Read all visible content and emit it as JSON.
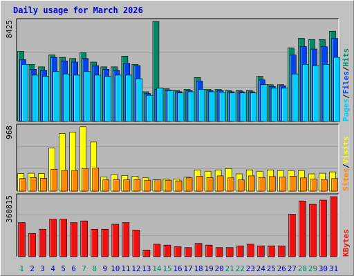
{
  "colors": {
    "background": "#c0c0c0",
    "plot_bg": "#b8b8b8",
    "title": "#0000cc",
    "hits": "#008866",
    "files": "#0044ee",
    "pages": "#00ccff",
    "visits": "#ffff00",
    "sites": "#ff8800",
    "kbytes": "#ee1111",
    "weekend_day": "#008866",
    "weekday": "#0000aa"
  },
  "chart_data": {
    "type": "bar",
    "title": "Daily usage for March 2026",
    "days": [
      "1",
      "2",
      "3",
      "4",
      "5",
      "6",
      "7",
      "8",
      "9",
      "10",
      "11",
      "12",
      "13",
      "14",
      "15",
      "16",
      "17",
      "18",
      "19",
      "20",
      "21",
      "22",
      "23",
      "24",
      "25",
      "26",
      "27",
      "28",
      "29",
      "30",
      "31"
    ],
    "weekend_days": [
      "1",
      "7",
      "8",
      "14",
      "15",
      "21",
      "22",
      "28",
      "29"
    ],
    "panels": [
      {
        "id": "hits_files_pages",
        "max_label": "8425",
        "ylim": [
          0,
          8425
        ],
        "legend": [
          {
            "label": "Pages",
            "color_key": "pages"
          },
          {
            "label": "Files",
            "color_key": "files"
          },
          {
            "label": "Hits",
            "color_key": "hits"
          }
        ],
        "series": [
          {
            "name": "Hits",
            "color_key": "hits",
            "values": [
              5900,
              4800,
              4600,
              5600,
              5400,
              5300,
              5800,
              5000,
              4600,
              4600,
              5500,
              4800,
              2500,
              8425,
              2750,
              2600,
              2700,
              3700,
              2700,
              2700,
              2600,
              2600,
              2600,
              3800,
              3100,
              3100,
              6200,
              7000,
              6900,
              6900,
              7600
            ]
          },
          {
            "name": "Files",
            "color_key": "files",
            "values": [
              5200,
              4400,
              4300,
              5400,
              5100,
              5000,
              5300,
              4700,
              4400,
              4300,
              4900,
              4700,
              2350,
              2700,
              2650,
              2500,
              2600,
              3400,
              2600,
              2600,
              2500,
              2500,
              2500,
              3500,
              2950,
              3000,
              5600,
              6300,
              6100,
              6300,
              7000
            ]
          },
          {
            "name": "Pages",
            "color_key": "pages",
            "values": [
              4800,
              3900,
              3800,
              4200,
              4000,
              3900,
              4200,
              3900,
              3800,
              3900,
              3900,
              3600,
              2200,
              2800,
              2600,
              2400,
              2500,
              2700,
              2500,
              2450,
              2400,
              2400,
              2400,
              3100,
              2800,
              2800,
              4000,
              4800,
              4700,
              4800,
              5400
            ]
          }
        ]
      },
      {
        "id": "visits_sites",
        "max_label": "968",
        "ylim": [
          0,
          968
        ],
        "legend": [
          {
            "label": "Sites",
            "color_key": "sites"
          },
          {
            "label": "Visits",
            "color_key": "visits"
          }
        ],
        "series": [
          {
            "name": "Visits",
            "color_key": "visits",
            "values": [
              265,
              270,
              265,
              650,
              870,
              890,
              970,
              740,
              215,
              250,
              235,
              225,
              200,
              170,
              180,
              180,
              210,
              320,
              300,
              320,
              340,
              260,
              320,
              300,
              320,
              310,
              310,
              310,
              260,
              270,
              290
            ]
          },
          {
            "name": "Sites",
            "color_key": "sites",
            "values": [
              190,
              205,
              195,
              330,
              310,
              310,
              340,
              350,
              170,
              175,
              170,
              175,
              165,
              170,
              165,
              155,
              200,
              225,
              205,
              230,
              200,
              170,
              230,
              205,
              220,
              215,
              225,
              200,
              185,
              175,
              190
            ]
          }
        ]
      },
      {
        "id": "kbytes",
        "max_label": "360815",
        "ylim": [
          0,
          360815
        ],
        "legend": [
          {
            "label": "KBytes",
            "color_key": "kbytes"
          }
        ],
        "series": [
          {
            "name": "KBytes",
            "color_key": "kbytes",
            "values": [
              205000,
              140000,
              165000,
              225000,
              225000,
              205000,
              215000,
              165000,
              165000,
              195000,
              205000,
              160000,
              40000,
              75000,
              70000,
              60000,
              55000,
              80000,
              70000,
              55000,
              55000,
              65000,
              75000,
              65000,
              65000,
              65000,
              255000,
              335000,
              315000,
              340000,
              360815
            ]
          }
        ]
      }
    ]
  }
}
